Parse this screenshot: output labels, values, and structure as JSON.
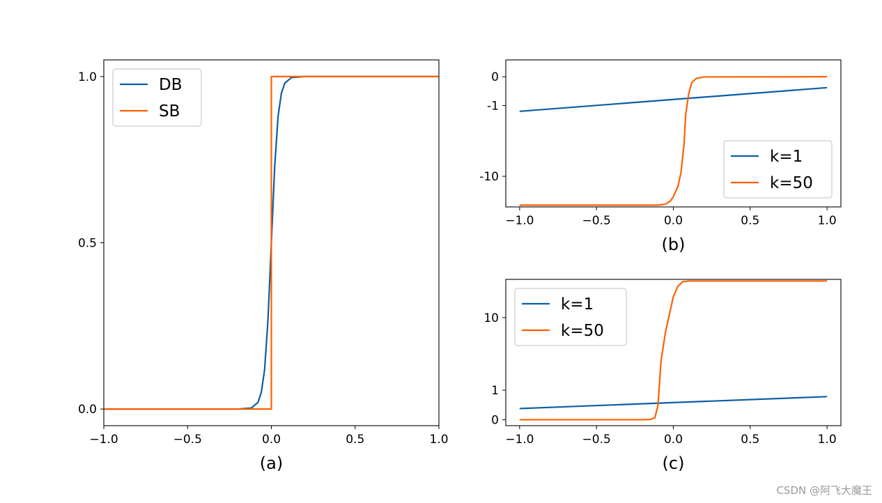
{
  "chart_data": [
    {
      "id": "a",
      "type": "line",
      "caption": "(a)",
      "xlim": [
        -1.0,
        1.0
      ],
      "ylim": [
        -0.05,
        1.05
      ],
      "xticks": [
        -1.0,
        -0.5,
        0.0,
        0.5,
        1.0
      ],
      "xtick_labels": [
        "−1.0",
        "−0.5",
        "0.0",
        "0.5",
        "1.0"
      ],
      "yticks": [
        0.0,
        0.5,
        1.0
      ],
      "ytick_labels": [
        "0.0",
        "0.5",
        "1.0"
      ],
      "legend_position": "upper-left",
      "series": [
        {
          "name": "DB",
          "color": "#0c5da5",
          "x": [
            -1.0,
            -0.2,
            -0.12,
            -0.08,
            -0.06,
            -0.04,
            -0.02,
            0.0,
            0.02,
            0.04,
            0.06,
            0.08,
            0.12,
            0.2,
            1.0
          ],
          "y": [
            0.0,
            0.0,
            0.003,
            0.02,
            0.05,
            0.12,
            0.27,
            0.5,
            0.73,
            0.88,
            0.95,
            0.98,
            0.997,
            1.0,
            1.0
          ]
        },
        {
          "name": "SB",
          "color": "#ff6000",
          "x": [
            -1.0,
            0.0,
            0.0,
            1.0
          ],
          "y": [
            0.0,
            0.0,
            1.0,
            1.0
          ]
        }
      ]
    },
    {
      "id": "b",
      "type": "line",
      "caption": "(b)",
      "xlim": [
        -1.09,
        1.09
      ],
      "ylim": [
        -22,
        0.5
      ],
      "yscale": "symlog",
      "xticks": [
        -1.0,
        -0.5,
        0.0,
        0.5,
        1.0
      ],
      "xtick_labels": [
        "−1.0",
        "−0.5",
        "0.0",
        "0.5",
        "1.0"
      ],
      "yticks": [
        0,
        -1,
        -10
      ],
      "ytick_labels": [
        "0",
        "-1",
        "-10"
      ],
      "legend_position": "lower-right",
      "series": [
        {
          "name": "k=1",
          "color": "#0c5da5",
          "x": [
            -1.0,
            1.0
          ],
          "y": [
            -1.3,
            -0.3
          ]
        },
        {
          "name": "k=50",
          "color": "#ff6000",
          "x": [
            -1.0,
            -0.1,
            -0.05,
            -0.02,
            0.0,
            0.03,
            0.05,
            0.07,
            0.08,
            0.1,
            0.12,
            0.15,
            0.2,
            1.0
          ],
          "y": [
            -21,
            -21,
            -20.5,
            -19,
            -17,
            -13,
            -9,
            -4,
            -1.5,
            -0.5,
            -0.15,
            -0.04,
            -0.005,
            0.0
          ]
        }
      ]
    },
    {
      "id": "c",
      "type": "line",
      "caption": "(c)",
      "xlim": [
        -1.09,
        1.09
      ],
      "ylim": [
        -0.15,
        26
      ],
      "yscale": "symlog",
      "xticks": [
        -1.0,
        -0.5,
        0.0,
        0.5,
        1.0
      ],
      "xtick_labels": [
        "−1.0",
        "−0.5",
        "0.0",
        "0.5",
        "1.0"
      ],
      "yticks": [
        0,
        1,
        10
      ],
      "ytick_labels": [
        "0",
        "1",
        "10"
      ],
      "legend_position": "upper-left",
      "series": [
        {
          "name": "k=1",
          "color": "#0c5da5",
          "x": [
            -1.0,
            1.0
          ],
          "y": [
            0.3,
            0.72
          ]
        },
        {
          "name": "k=50",
          "color": "#ff6000",
          "x": [
            -1.0,
            -0.2,
            -0.15,
            -0.12,
            -0.1,
            -0.08,
            -0.05,
            -0.02,
            0.0,
            0.03,
            0.06,
            0.1,
            1.0
          ],
          "y": [
            0.0,
            0.0,
            0.005,
            0.05,
            0.4,
            3,
            7,
            12,
            17,
            22,
            24.5,
            25,
            25
          ]
        }
      ]
    }
  ],
  "watermark": "CSDN @阿飞大魔王"
}
